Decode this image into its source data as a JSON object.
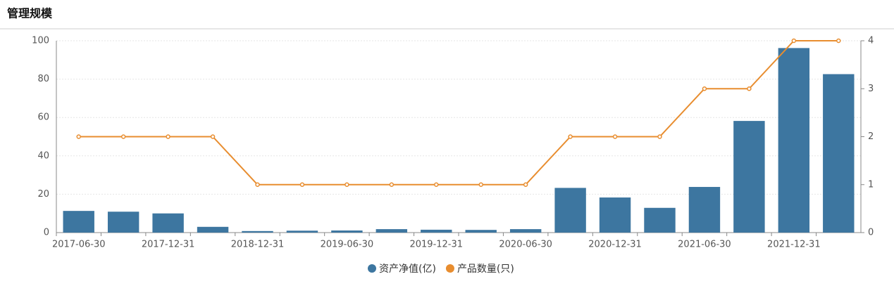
{
  "chart_data": {
    "type": "bar-line",
    "title": "管理规模",
    "categories": [
      "2017-06-30",
      null,
      "2017-12-31",
      null,
      "2018-12-31",
      null,
      "2019-06-30",
      null,
      "2019-12-31",
      null,
      "2020-06-30",
      null,
      "2020-12-31",
      null,
      "2021-06-30",
      null,
      "2021-12-31",
      null
    ],
    "series": [
      {
        "name": "资产净值(亿)",
        "color": "#3d76a0",
        "type": "bar",
        "values": [
          11.3,
          10.9,
          10,
          3,
          0.8,
          1,
          1.1,
          1.8,
          1.5,
          1.4,
          1.8,
          23.3,
          18.3,
          12.9,
          23.8,
          58.2,
          96.2,
          82.6
        ]
      },
      {
        "name": "产品数量(只)",
        "color": "#e88d2f",
        "type": "line",
        "axis": "y2",
        "values": [
          2,
          2,
          2,
          2,
          1,
          1,
          1,
          1,
          1,
          1,
          1,
          2,
          2,
          2,
          3,
          3,
          4,
          4
        ]
      }
    ],
    "ylim": [
      0,
      100
    ],
    "yticks": [
      0,
      20,
      40,
      60,
      80,
      100
    ],
    "y2lim": [
      0,
      4
    ],
    "y2ticks": [
      0,
      1,
      2,
      3,
      4
    ],
    "grid": true
  }
}
